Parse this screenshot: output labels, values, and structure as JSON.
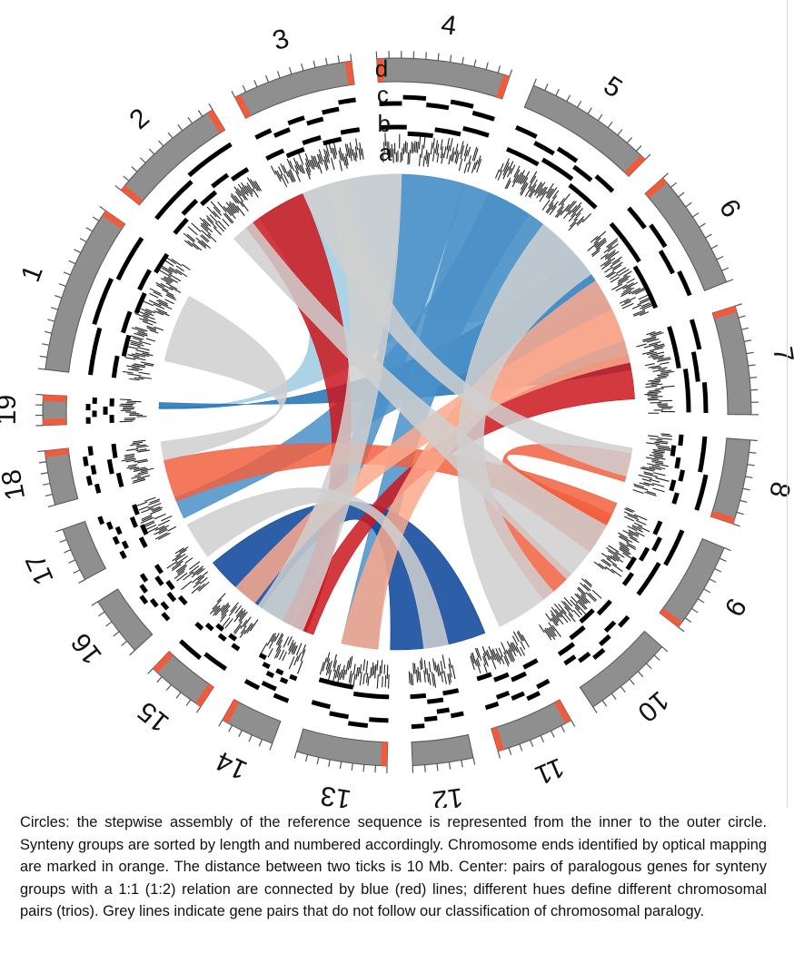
{
  "chromosomes": [
    {
      "label": "1",
      "length": 28,
      "orange": "end"
    },
    {
      "label": "2",
      "length": 20,
      "orange": "both"
    },
    {
      "label": "3",
      "length": 20,
      "orange": "both"
    },
    {
      "label": "4",
      "length": 22,
      "orange": "both"
    },
    {
      "label": "5",
      "length": 22,
      "orange": "end"
    },
    {
      "label": "6",
      "length": 20,
      "orange": "start"
    },
    {
      "label": "7",
      "length": 18,
      "orange": "start"
    },
    {
      "label": "8",
      "length": 14,
      "orange": "end"
    },
    {
      "label": "9",
      "length": 15,
      "orange": "end"
    },
    {
      "label": "10",
      "length": 15,
      "orange": "none"
    },
    {
      "label": "11",
      "length": 13,
      "orange": "both"
    },
    {
      "label": "12",
      "length": 10,
      "orange": "none"
    },
    {
      "label": "13",
      "length": 15,
      "orange": "start"
    },
    {
      "label": "14",
      "length": 9,
      "orange": "end"
    },
    {
      "label": "15",
      "length": 10,
      "orange": "both"
    },
    {
      "label": "16",
      "length": 10,
      "orange": "none"
    },
    {
      "label": "17",
      "length": 9,
      "orange": "none"
    },
    {
      "label": "18",
      "length": 9,
      "orange": "end"
    },
    {
      "label": "19",
      "length": 5,
      "orange": "both"
    }
  ],
  "ring_labels": [
    "d",
    "c",
    "b",
    "a"
  ],
  "colors": {
    "chromosome": "#8f8f8f",
    "chromosome_edge": "#555555",
    "orange_end": "#f15a3a",
    "assembly": "#000000",
    "grey_link": "#cfcfcf",
    "blue_light": "#9ecae1",
    "blue_mid": "#4a90c8",
    "blue_dark": "#08439a",
    "blue_med2": "#2171b5",
    "red_dark": "#cb181d",
    "red_mid": "#f1603f",
    "red_light": "#fca98c"
  },
  "links": [
    {
      "color": "blue_light",
      "a": [
        18.6,
        19.7
      ],
      "b": [
        1.8,
        4.2
      ],
      "w": 0.35
    },
    {
      "color": "blue_light",
      "a": [
        2.8,
        4.0
      ],
      "b": [
        3.6,
        5.2
      ],
      "w": 0.35
    },
    {
      "color": "blue_med2",
      "a": [
        18.9,
        19.6
      ],
      "b": [
        5.0,
        6.4
      ],
      "w": 0.5
    },
    {
      "color": "blue_mid",
      "a": [
        16.2,
        16.8
      ],
      "b": [
        4.0,
        5.6
      ],
      "w": 0.45
    },
    {
      "color": "blue_mid",
      "a": [
        3.2,
        3.9
      ],
      "b": [
        13.7,
        14.1
      ],
      "w": 0.35
    },
    {
      "color": "blue_mid",
      "a": [
        3.9,
        4.5
      ],
      "b": [
        12.2,
        12.8
      ],
      "w": 0.3
    },
    {
      "color": "blue_dark",
      "a": [
        14.1,
        15.3
      ],
      "b": [
        10.6,
        12.0
      ],
      "w": 0.6
    },
    {
      "color": "red_dark",
      "a": [
        1.6,
        2.2
      ],
      "b": [
        13.2,
        13.9
      ],
      "w": 0.45
    },
    {
      "color": "red_dark",
      "a": [
        13.0,
        13.6
      ],
      "b": [
        6.2,
        6.8
      ],
      "w": 0.5
    },
    {
      "color": "red_mid",
      "a": [
        16.7,
        17.4
      ],
      "b": [
        8.0,
        8.6
      ],
      "w": 0.4
    },
    {
      "color": "red_mid",
      "a": [
        8.2,
        8.9
      ],
      "b": [
        9.1,
        9.7
      ],
      "w": 0.4
    },
    {
      "color": "red_mid",
      "a": [
        7.4,
        7.9
      ],
      "b": [
        8.3,
        8.9
      ],
      "w": 0.3
    },
    {
      "color": "red_light",
      "a": [
        14.3,
        14.9
      ],
      "b": [
        5.8,
        6.3
      ],
      "w": 0.4
    },
    {
      "color": "red_light",
      "a": [
        12.2,
        12.8
      ],
      "b": [
        5.4,
        6.0
      ],
      "w": 0.4
    },
    {
      "color": "grey_link",
      "a": [
        1.4,
        1.7
      ],
      "b": [
        8.4,
        9.2
      ],
      "w": 0.4
    },
    {
      "color": "grey_link",
      "a": [
        2.5,
        3.2
      ],
      "b": [
        13.3,
        14.2
      ],
      "w": 0.3
    },
    {
      "color": "grey_link",
      "a": [
        9.5,
        10.3
      ],
      "b": [
        4.7,
        5.3
      ],
      "w": 0.3
    },
    {
      "color": "grey_link",
      "a": [
        2.2,
        2.7
      ],
      "b": [
        7.3,
        7.8
      ],
      "w": 0.25
    },
    {
      "color": "grey_link",
      "a": [
        15.5,
        16.0
      ],
      "b": [
        11.0,
        11.6
      ],
      "w": 0.25
    },
    {
      "color": "grey_link",
      "a": [
        17.4,
        17.9
      ],
      "b": [
        0.2,
        0.8
      ],
      "w": 0.25
    }
  ],
  "caption": "Circles: the stepwise assembly of the reference sequence is represented from the inner to the outer circle. Synteny groups are sorted by length and numbered accordingly. Chromosome ends identified by optical mapping are marked in orange. The distance between two ticks is 10 Mb. Center: pairs of paralogous genes for synteny groups with a 1:1 (1:2) relation are connected by blue (red) lines; different hues define different chromosomal pairs (trios). Grey lines indicate gene pairs that do not follow our classification of chromosomal paralogy."
}
